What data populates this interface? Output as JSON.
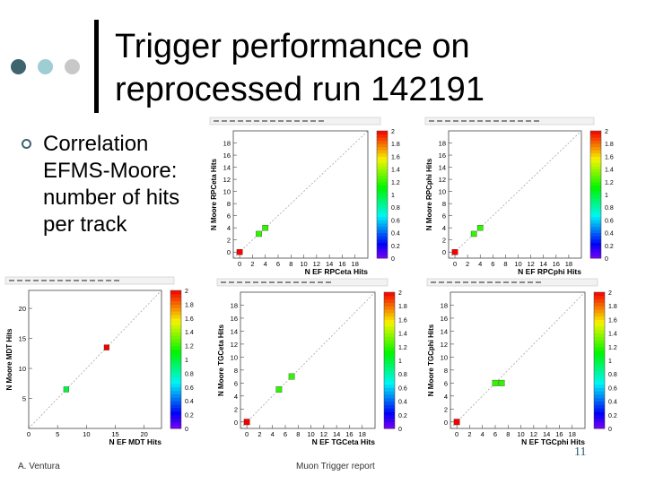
{
  "slide": {
    "title_line1": "Trigger performance on",
    "title_line2": "reprocessed run 142191",
    "bullet": "Correlation EFMS-Moore: number of hits per track",
    "footer_left": "A. Ventura",
    "footer_center": "Muon Trigger report",
    "slide_number": "11",
    "dot_colors": [
      "#3e6470",
      "#9ecdd2",
      "#c8c8c8"
    ]
  },
  "chart_data": [
    {
      "type": "heatmap",
      "xlabel": "N EF RPCeta Hits",
      "ylabel": "N Moore RPCeta Hits",
      "xlim": [
        -1,
        20
      ],
      "ylim": [
        -1,
        20
      ],
      "xticks": [
        0,
        2,
        4,
        6,
        8,
        10,
        12,
        14,
        16,
        18
      ],
      "yticks": [
        0,
        2,
        4,
        6,
        8,
        10,
        12,
        14,
        16,
        18
      ],
      "colorbar_ticks": [
        "0",
        "0.2",
        "0.4",
        "0.6",
        "0.8",
        "1",
        "1.2",
        "1.4",
        "1.6",
        "1.8",
        "2"
      ],
      "cells": [
        {
          "x": 0,
          "y": 0,
          "value": 2
        },
        {
          "x": 3,
          "y": 3,
          "value": 1.2
        },
        {
          "x": 4,
          "y": 4,
          "value": 1.2
        }
      ]
    },
    {
      "type": "heatmap",
      "xlabel": "N EF RPCphi Hits",
      "ylabel": "N Moore RPCphi Hits",
      "xlim": [
        -1,
        20
      ],
      "ylim": [
        -1,
        20
      ],
      "xticks": [
        0,
        2,
        4,
        6,
        8,
        10,
        12,
        14,
        16,
        18
      ],
      "yticks": [
        0,
        2,
        4,
        6,
        8,
        10,
        12,
        14,
        16,
        18
      ],
      "colorbar_ticks": [
        "0",
        "0.2",
        "0.4",
        "0.6",
        "0.8",
        "1",
        "1.2",
        "1.4",
        "1.6",
        "1.8",
        "2"
      ],
      "cells": [
        {
          "x": 0,
          "y": 0,
          "value": 2
        },
        {
          "x": 3,
          "y": 3,
          "value": 1.2
        },
        {
          "x": 4,
          "y": 4,
          "value": 1.2
        }
      ]
    },
    {
      "type": "heatmap",
      "xlabel": "N EF MDT Hits",
      "ylabel": "N Moore MDT Hits",
      "xlim": [
        0,
        23
      ],
      "ylim": [
        0,
        23
      ],
      "xticks": [
        0,
        5,
        10,
        15,
        20
      ],
      "yticks": [
        5,
        10,
        15,
        20
      ],
      "colorbar_ticks": [
        "0",
        "0.2",
        "0.4",
        "0.6",
        "0.8",
        "1",
        "1.2",
        "1.4",
        "1.6",
        "1.8",
        "2"
      ],
      "cells": [
        {
          "x": 6.5,
          "y": 6.5,
          "value": 1
        },
        {
          "x": 13.5,
          "y": 13.5,
          "value": 2
        }
      ]
    },
    {
      "type": "heatmap",
      "xlabel": "N EF TGCeta Hits",
      "ylabel": "N Moore TGCeta Hits",
      "xlim": [
        -1,
        20
      ],
      "ylim": [
        -1,
        20
      ],
      "xticks": [
        0,
        2,
        4,
        6,
        8,
        10,
        12,
        14,
        16,
        18
      ],
      "yticks": [
        0,
        2,
        4,
        6,
        8,
        10,
        12,
        14,
        16,
        18
      ],
      "colorbar_ticks": [
        "0",
        "0.2",
        "0.4",
        "0.6",
        "0.8",
        "1",
        "1.2",
        "1.4",
        "1.6",
        "1.8",
        "2"
      ],
      "cells": [
        {
          "x": 0,
          "y": 0,
          "value": 2
        },
        {
          "x": 5,
          "y": 5,
          "value": 1.2
        },
        {
          "x": 7,
          "y": 7,
          "value": 1.2
        }
      ]
    },
    {
      "type": "heatmap",
      "xlabel": "N EF TGCphi Hits",
      "ylabel": "N Moore TGCphi Hits",
      "xlim": [
        -1,
        20
      ],
      "ylim": [
        -1,
        20
      ],
      "xticks": [
        0,
        2,
        4,
        6,
        8,
        10,
        12,
        14,
        16,
        18
      ],
      "yticks": [
        0,
        2,
        4,
        6,
        8,
        10,
        12,
        14,
        16,
        18
      ],
      "colorbar_ticks": [
        "0",
        "0.2",
        "0.4",
        "0.6",
        "0.8",
        "1",
        "1.2",
        "1.4",
        "1.6",
        "1.8",
        "2"
      ],
      "cells": [
        {
          "x": 0,
          "y": 0,
          "value": 2
        },
        {
          "x": 6,
          "y": 6,
          "value": 1.2
        },
        {
          "x": 7,
          "y": 6,
          "value": 1.2
        }
      ]
    }
  ]
}
